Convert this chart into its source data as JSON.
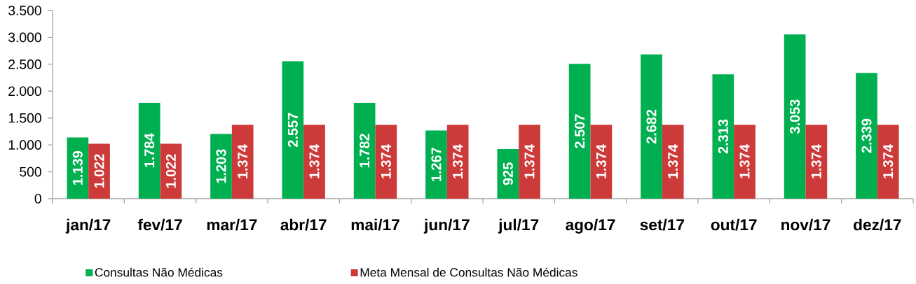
{
  "chart_data": {
    "type": "bar",
    "categories": [
      "jan/17",
      "fev/17",
      "mar/17",
      "abr/17",
      "mai/17",
      "jun/17",
      "jul/17",
      "ago/17",
      "set/17",
      "out/17",
      "nov/17",
      "dez/17"
    ],
    "series": [
      {
        "name": "Consultas Não Médicas",
        "color": "#00b050",
        "values": [
          1139,
          1784,
          1203,
          2557,
          1782,
          1267,
          925,
          2507,
          2682,
          2313,
          3053,
          2339
        ],
        "value_labels": [
          "1.139",
          "1.784",
          "1.203",
          "2.557",
          "1.782",
          "1.267",
          "925",
          "2.507",
          "2.682",
          "2.313",
          "3.053",
          "2.339"
        ]
      },
      {
        "name": "Meta Mensal de Consultas Não Médicas",
        "color": "#cc3a39",
        "values": [
          1022,
          1022,
          1374,
          1374,
          1374,
          1374,
          1374,
          1374,
          1374,
          1374,
          1374,
          1374
        ],
        "value_labels": [
          "1.022",
          "1.022",
          "1.374",
          "1.374",
          "1.374",
          "1.374",
          "1.374",
          "1.374",
          "1.374",
          "1.374",
          "1.374",
          "1.374"
        ]
      }
    ],
    "ylim": [
      0,
      3500
    ],
    "yticks": [
      0,
      500,
      {
        "value": 1000,
        "label": "1.000"
      },
      {
        "value": 1500,
        "label": "1.500"
      },
      {
        "value": 2000,
        "label": "2.000"
      },
      {
        "value": 2500,
        "label": "2.500"
      },
      {
        "value": 3000,
        "label": "3.000"
      },
      {
        "value": 3500,
        "label": "3.500"
      }
    ],
    "legend": "bottom"
  }
}
